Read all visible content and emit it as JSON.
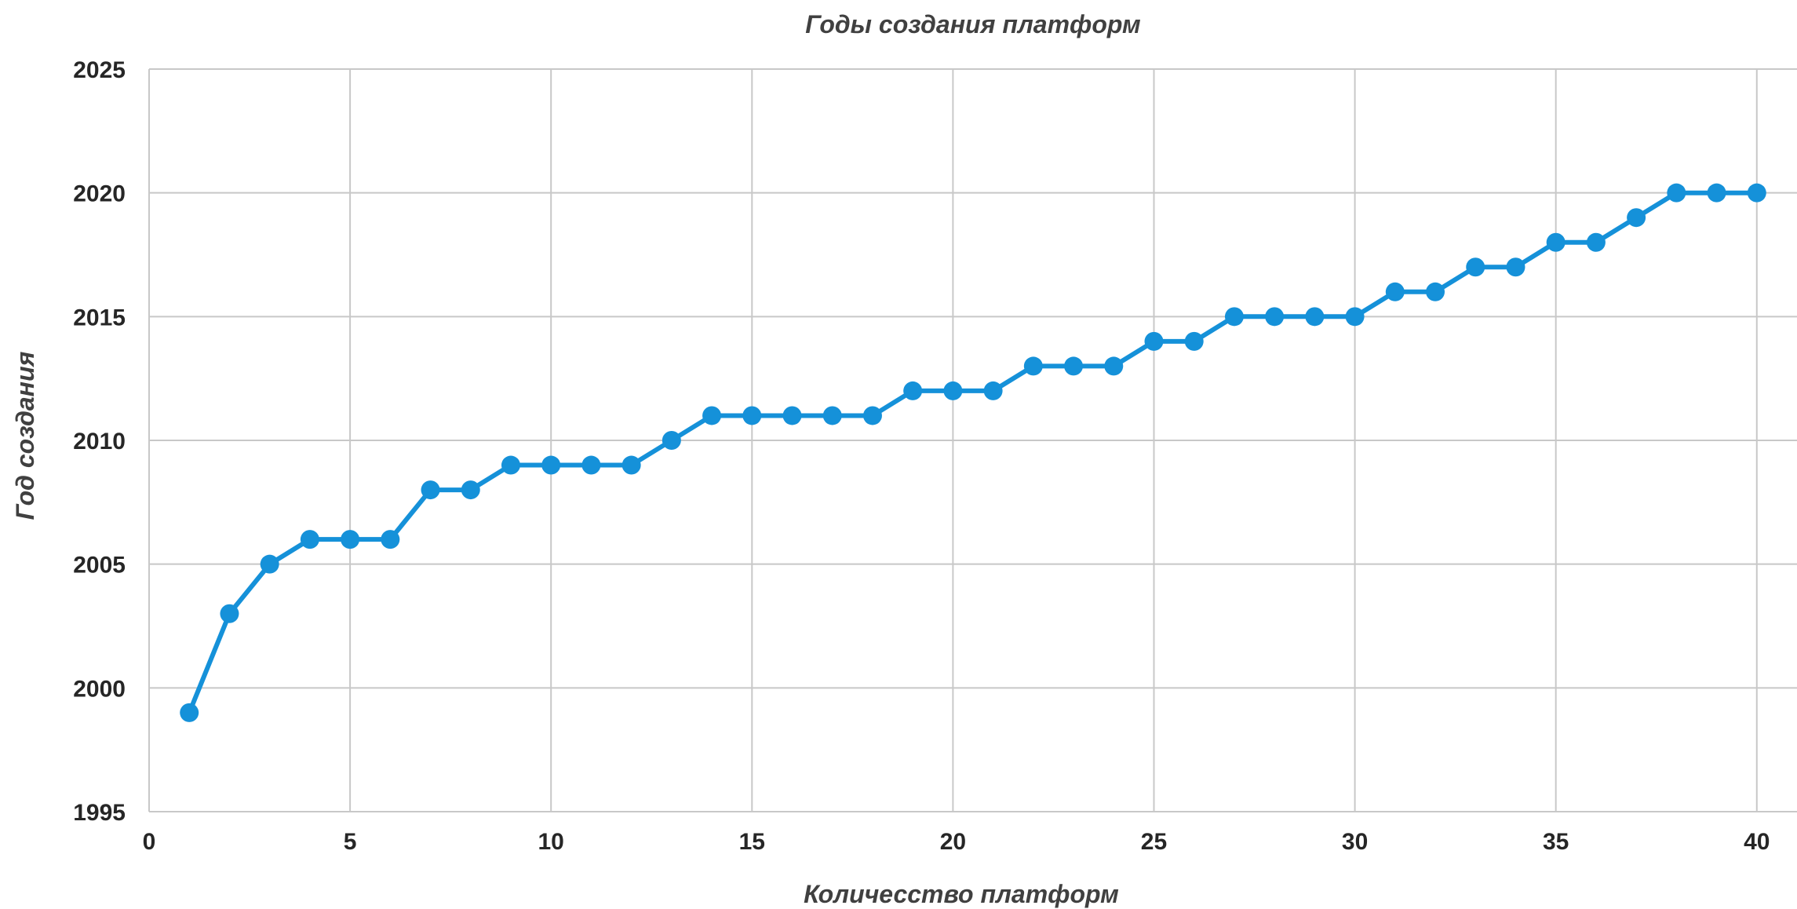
{
  "chart_data": {
    "type": "line",
    "title": "Годы создания платформ",
    "xlabel": "Количесство платформ",
    "ylabel": "Год создания",
    "xlim": [
      0,
      41
    ],
    "ylim": [
      1995,
      2025
    ],
    "x_ticks": [
      0,
      5,
      10,
      15,
      20,
      25,
      30,
      35,
      40
    ],
    "y_ticks": [
      1995,
      2000,
      2005,
      2010,
      2015,
      2020,
      2025
    ],
    "grid": true,
    "legend": "none",
    "series": [
      {
        "color": "#1591D9",
        "marker": "circle",
        "x": [
          1,
          2,
          3,
          4,
          5,
          6,
          7,
          8,
          9,
          10,
          11,
          12,
          13,
          14,
          15,
          16,
          17,
          18,
          19,
          20,
          21,
          22,
          23,
          24,
          25,
          26,
          27,
          28,
          29,
          30,
          31,
          32,
          33,
          34,
          35,
          36,
          37,
          38,
          39,
          40
        ],
        "y": [
          1999,
          2003,
          2005,
          2006,
          2006,
          2006,
          2008,
          2008,
          2009,
          2009,
          2009,
          2009,
          2010,
          2011,
          2011,
          2011,
          2011,
          2011,
          2012,
          2012,
          2012,
          2013,
          2013,
          2013,
          2014,
          2014,
          2015,
          2015,
          2015,
          2015,
          2016,
          2016,
          2017,
          2017,
          2018,
          2018,
          2019,
          2020,
          2020,
          2020
        ]
      }
    ]
  }
}
